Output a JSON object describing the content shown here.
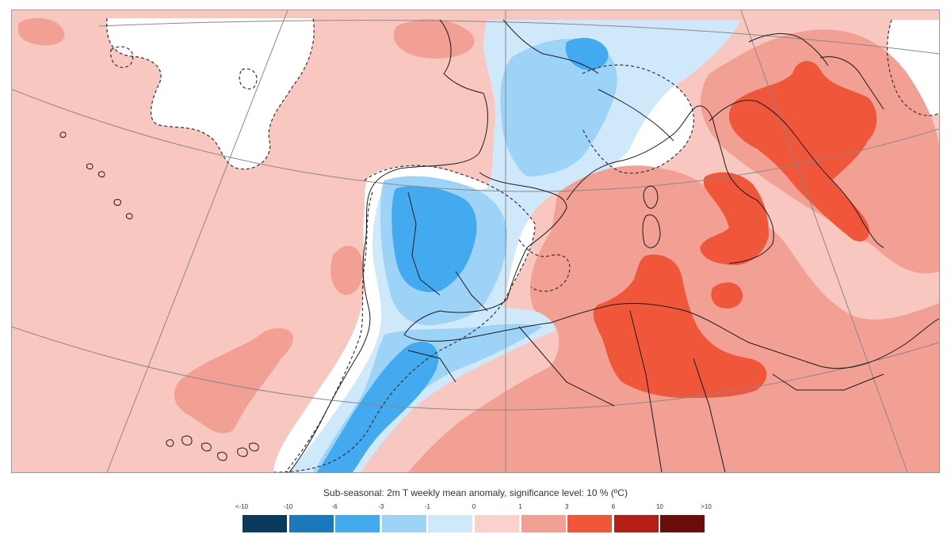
{
  "legend": {
    "title": "Sub-seasonal: 2m T weekly mean anomaly, significance level: 10 % (ºC)",
    "ticks": [
      "<-10",
      "-10",
      "-6",
      "-3",
      "-1",
      "0",
      "1",
      "3",
      "6",
      "10",
      ">10"
    ],
    "colors": [
      "#0a3a5c",
      "#1a78bd",
      "#43aaf0",
      "#9ed3f8",
      "#cfe9fb",
      "#fbd1cb",
      "#f2a094",
      "#f0563a",
      "#b51f14",
      "#6b0d0a"
    ]
  },
  "map": {
    "region": "Western Europe and North Africa",
    "colors": {
      "ocean_background": "#f8c7c0",
      "insignificant": "#ffffff",
      "cold_light": "#cfe9fb",
      "cold_medium": "#9ed3f8",
      "cold_strong": "#43aaf0",
      "warm_light": "#fbd1cb",
      "warm_medium": "#f2a094",
      "warm_strong": "#f0563a"
    }
  }
}
